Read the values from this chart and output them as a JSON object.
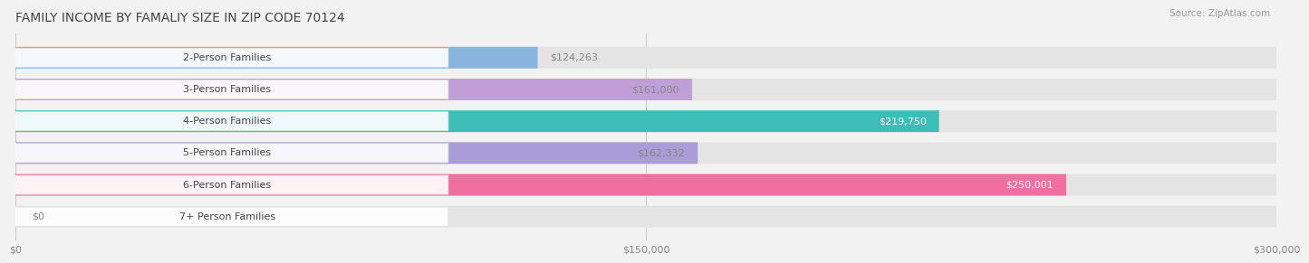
{
  "title": "FAMILY INCOME BY FAMALIY SIZE IN ZIP CODE 70124",
  "source": "Source: ZipAtlas.com",
  "categories": [
    "2-Person Families",
    "3-Person Families",
    "4-Person Families",
    "5-Person Families",
    "6-Person Families",
    "7+ Person Families"
  ],
  "values": [
    124263,
    161000,
    219750,
    162332,
    250001,
    0
  ],
  "bar_colors": [
    "#8ab4e0",
    "#c09fd8",
    "#3dbdb8",
    "#a89dd6",
    "#f06fa0",
    "#f5c9a0"
  ],
  "value_labels": [
    "$124,263",
    "$161,000",
    "$219,750",
    "$162,332",
    "$250,001",
    "$0"
  ],
  "value_label_colors": [
    "#888888",
    "#888888",
    "#ffffff",
    "#888888",
    "#ffffff",
    "#888888"
  ],
  "xlim": [
    0,
    300000
  ],
  "xtick_labels": [
    "$0",
    "$150,000",
    "$300,000"
  ],
  "background_color": "#f2f2f2",
  "bar_background_color": "#e4e4e4",
  "title_fontsize": 10,
  "source_fontsize": 7.5,
  "label_fontsize": 8,
  "value_fontsize": 8,
  "bar_height": 0.68,
  "bar_gap": 0.32
}
